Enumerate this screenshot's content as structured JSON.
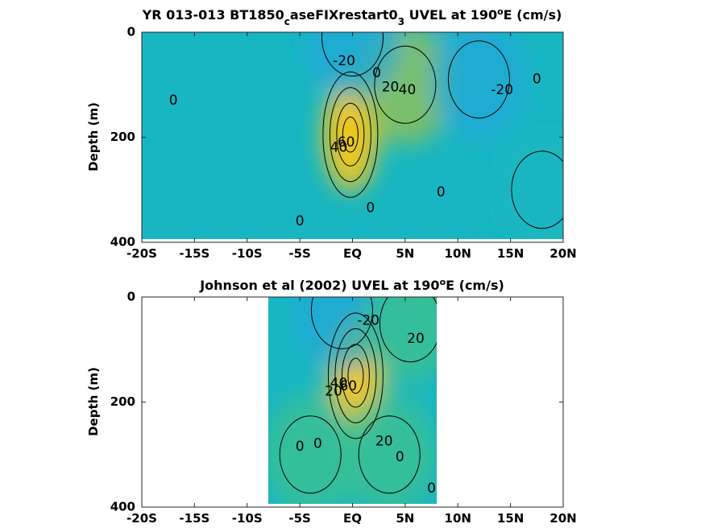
{
  "colors": {
    "background": "#ffffff",
    "colormap": [
      "#3e86e8",
      "#1fa8d8",
      "#17b6c2",
      "#3fc08f",
      "#9bc24e",
      "#e4b830",
      "#f2c71c"
    ],
    "contour": "#000000"
  },
  "chart_data": [
    {
      "type": "heatmap",
      "title": "YR 013-013 BT1850",
      "title_sub": "c",
      "title_mid": "aseFIXrestart0",
      "title_sub2": "3",
      "title_tail": " UVEL at 190",
      "title_sup": "o",
      "title_end": "E (cm/s)",
      "xlabel": "",
      "ylabel": "Depth (m)",
      "xlim": [
        -20,
        20
      ],
      "ylim": [
        400,
        0
      ],
      "x_ticks": [
        -20,
        -15,
        -10,
        -5,
        0,
        5,
        10,
        15,
        20
      ],
      "x_tick_labels": [
        "-20S",
        "-15S",
        "-10S",
        "-5S",
        "EQ",
        "5N",
        "10N",
        "15N",
        "20N"
      ],
      "y_ticks": [
        0,
        200,
        400
      ],
      "y_tick_labels": [
        "0",
        "200",
        "400"
      ],
      "data_extent": [
        -20,
        20
      ],
      "features": [
        {
          "name": "core",
          "x": -0.2,
          "depth": 195,
          "value": 75
        },
        {
          "name": "jet",
          "x": 5.0,
          "depth": 100,
          "value": 45
        },
        {
          "name": "flow",
          "x": 12.0,
          "depth": 90,
          "value": -30
        },
        {
          "name": "flow",
          "x": 0.0,
          "depth": 10,
          "value": -25
        },
        {
          "name": "flow",
          "x": 18.0,
          "depth": 300,
          "value": 0
        }
      ],
      "contour_labels": [
        {
          "text": "-20",
          "x": -0.8,
          "depth": 55
        },
        {
          "text": "0",
          "x": 2.3,
          "depth": 78
        },
        {
          "text": "20",
          "x": 3.6,
          "depth": 105
        },
        {
          "text": "40",
          "x": 5.2,
          "depth": 110
        },
        {
          "text": "-20",
          "x": 14.2,
          "depth": 110
        },
        {
          "text": "0",
          "x": 17.5,
          "depth": 90
        },
        {
          "text": "0",
          "x": -17.0,
          "depth": 130
        },
        {
          "text": "40",
          "x": -1.3,
          "depth": 220
        },
        {
          "text": "60",
          "x": -0.6,
          "depth": 210
        },
        {
          "text": "0",
          "x": 8.4,
          "depth": 305
        },
        {
          "text": "0",
          "x": 1.7,
          "depth": 335
        },
        {
          "text": "0",
          "x": -5.0,
          "depth": 360
        }
      ]
    },
    {
      "type": "heatmap",
      "title": "Johnson et al (2002) UVEL at 190",
      "title_sup": "o",
      "title_end": "E (cm/s)",
      "xlabel": "",
      "ylabel": "Depth (m)",
      "xlim": [
        -20,
        20
      ],
      "ylim": [
        400,
        0
      ],
      "x_ticks": [
        -20,
        -15,
        -10,
        -5,
        0,
        5,
        10,
        15,
        20
      ],
      "x_tick_labels": [
        "-20S",
        "-15S",
        "-10S",
        "-5S",
        "EQ",
        "5N",
        "10N",
        "15N",
        "20N"
      ],
      "y_ticks": [
        0,
        200,
        400
      ],
      "y_tick_labels": [
        "0",
        "200",
        "400"
      ],
      "data_extent": [
        -8,
        8
      ],
      "features": [
        {
          "name": "core",
          "x": 0.3,
          "depth": 150,
          "value": 80
        },
        {
          "name": "flow",
          "x": -1.0,
          "depth": 25,
          "value": -30
        },
        {
          "name": "flow",
          "x": 5.5,
          "depth": 50,
          "value": 25
        },
        {
          "name": "flow",
          "x": 3.5,
          "depth": 300,
          "value": 25
        },
        {
          "name": "flow",
          "x": -4.0,
          "depth": 300,
          "value": 15
        }
      ],
      "contour_labels": [
        {
          "text": "-20",
          "x": 1.5,
          "depth": 45
        },
        {
          "text": "20",
          "x": 6.0,
          "depth": 80
        },
        {
          "text": "20",
          "x": -1.8,
          "depth": 180
        },
        {
          "text": "40",
          "x": -1.3,
          "depth": 165
        },
        {
          "text": "60",
          "x": -0.4,
          "depth": 170
        },
        {
          "text": "0",
          "x": -5.0,
          "depth": 285
        },
        {
          "text": "0",
          "x": -3.3,
          "depth": 280
        },
        {
          "text": "20",
          "x": 3.0,
          "depth": 275
        },
        {
          "text": "0",
          "x": 4.5,
          "depth": 305
        },
        {
          "text": "0",
          "x": 7.5,
          "depth": 365
        }
      ]
    }
  ]
}
